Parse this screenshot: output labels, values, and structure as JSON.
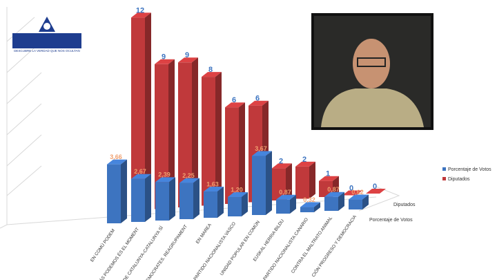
{
  "chart_data": {
    "type": "bar3d",
    "categories": [
      "EN COMÚ PODEM",
      "MÁS PODEMOS ÉS EL MOMENT",
      "DE CATALUNYA-CATALUNYA SÍ",
      "DEMOCRATES. REAGRUPAMENT",
      "EN MAREA",
      "PARTIDO NACIONALISTA VASCO",
      "UNIDAD POPULAR EN COMÚN",
      "EUSKAL HERRIA BILDU",
      "PARTIDO NACIONALISTA CANARIO",
      "CONTRA EL MALTRATO ANIMAL",
      "CIÓN PROGRESO Y DEMOCRACIA"
    ],
    "series": [
      {
        "name": "Porcentaje de Votos",
        "color": "#3d74c0",
        "values": [
          3.66,
          2.67,
          2.39,
          2.25,
          1.63,
          1.2,
          3.67,
          0.87,
          0.32,
          0.87,
          0.62
        ],
        "value_labels": [
          "3,66",
          "2,67",
          "2,39",
          "2,25",
          "1,63",
          "1,20",
          "3,67",
          "0,87",
          "0,32",
          "0,87",
          "0,62"
        ]
      },
      {
        "name": "Diputados",
        "color": "#c0393b",
        "values": [
          12,
          9,
          9,
          8,
          6,
          6,
          2,
          2,
          1,
          0,
          0
        ]
      }
    ],
    "ylim": [
      0,
      14
    ]
  },
  "logo": {
    "tagline": "DESCUBRE LA VERDAD QUE NOS OCULTAN"
  }
}
